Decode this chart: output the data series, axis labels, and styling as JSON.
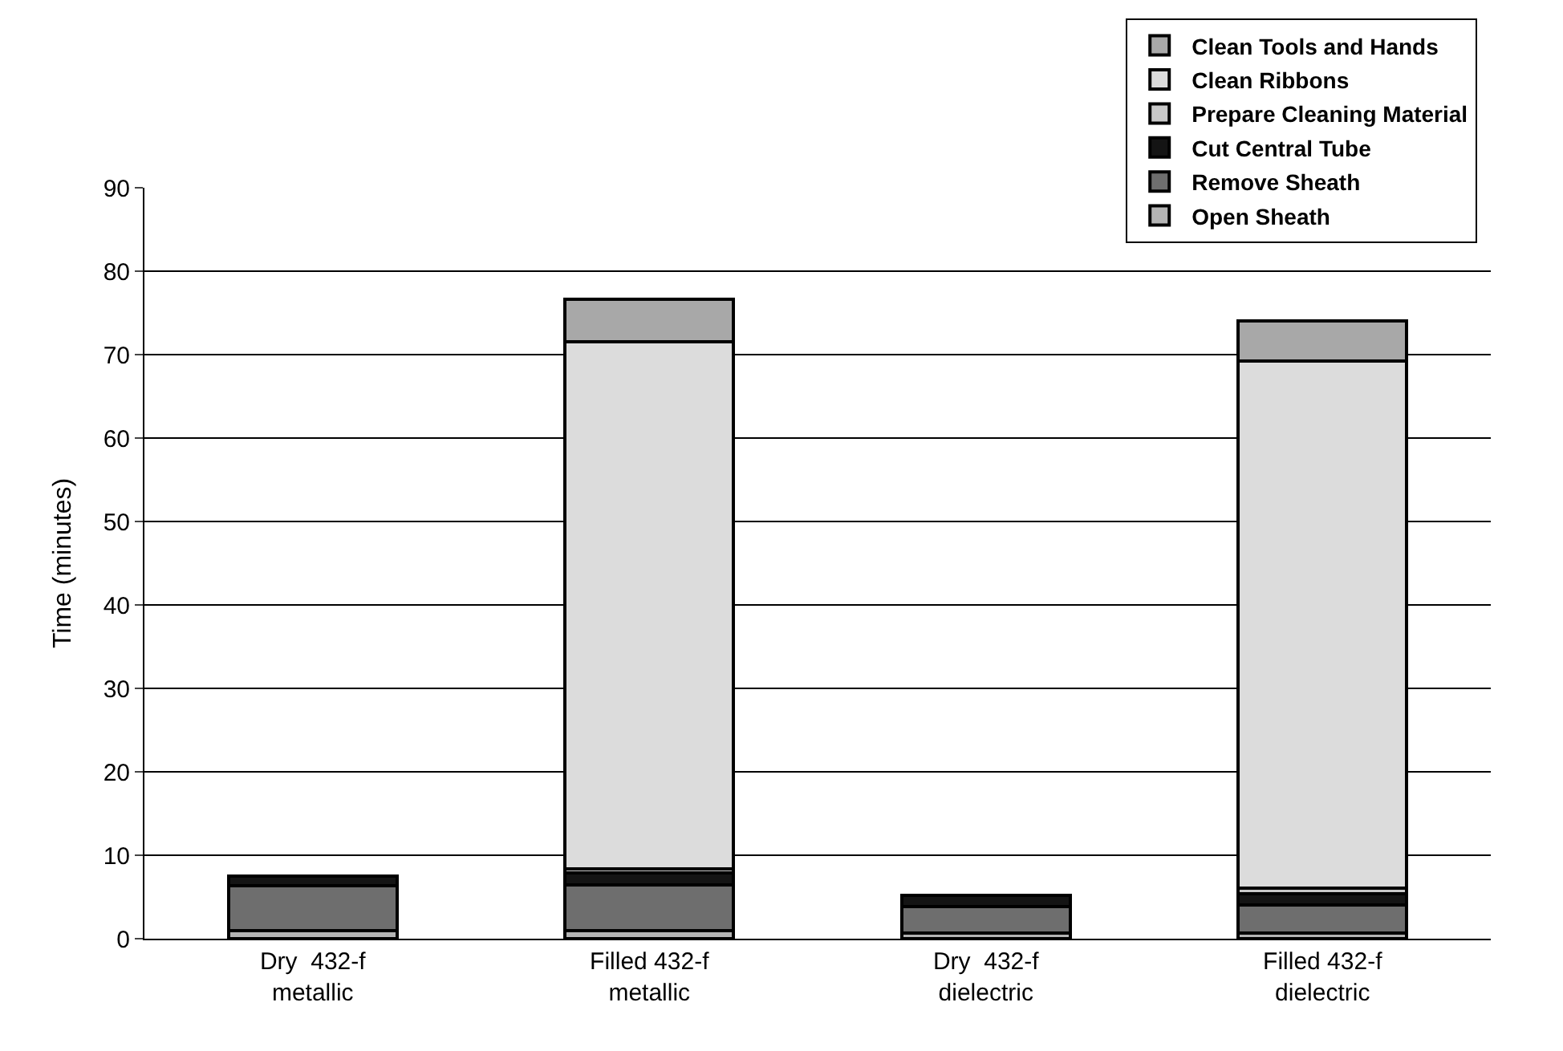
{
  "chart_data": {
    "type": "bar",
    "stacked": true,
    "ylabel": "Time (minutes)",
    "categories": [
      "Dry  432-f\nmetallic",
      "Filled 432-f\nmetallic",
      "Dry  432-f\ndielectric",
      "Filled 432-f\ndielectric"
    ],
    "series": [
      {
        "name": "Open Sheath",
        "color": "#b4b4b4",
        "values": [
          1,
          1,
          0.7,
          0.7
        ]
      },
      {
        "name": "Remove Sheath",
        "color": "#6e6e6e",
        "values": [
          5.3,
          5.4,
          3.1,
          3.3
        ]
      },
      {
        "name": "Cut Central Tube",
        "color": "#141414",
        "values": [
          1.2,
          1.5,
          1.4,
          1.4
        ]
      },
      {
        "name": "Prepare Cleaning Material",
        "color": "#c8c8c8",
        "values": [
          null,
          0.5,
          null,
          0.7
        ]
      },
      {
        "name": "Clean Ribbons",
        "color": "#dcdcdc",
        "values": [
          null,
          63.1,
          null,
          63.1
        ]
      },
      {
        "name": "Clean Tools and Hands",
        "color": "#a8a8a8",
        "values": [
          null,
          5.1,
          null,
          4.8
        ]
      }
    ],
    "ylim": [
      0,
      90
    ],
    "yticks": [
      0,
      10,
      20,
      30,
      40,
      50,
      60,
      70,
      80,
      90
    ],
    "grid": "y",
    "legend": "top right"
  }
}
